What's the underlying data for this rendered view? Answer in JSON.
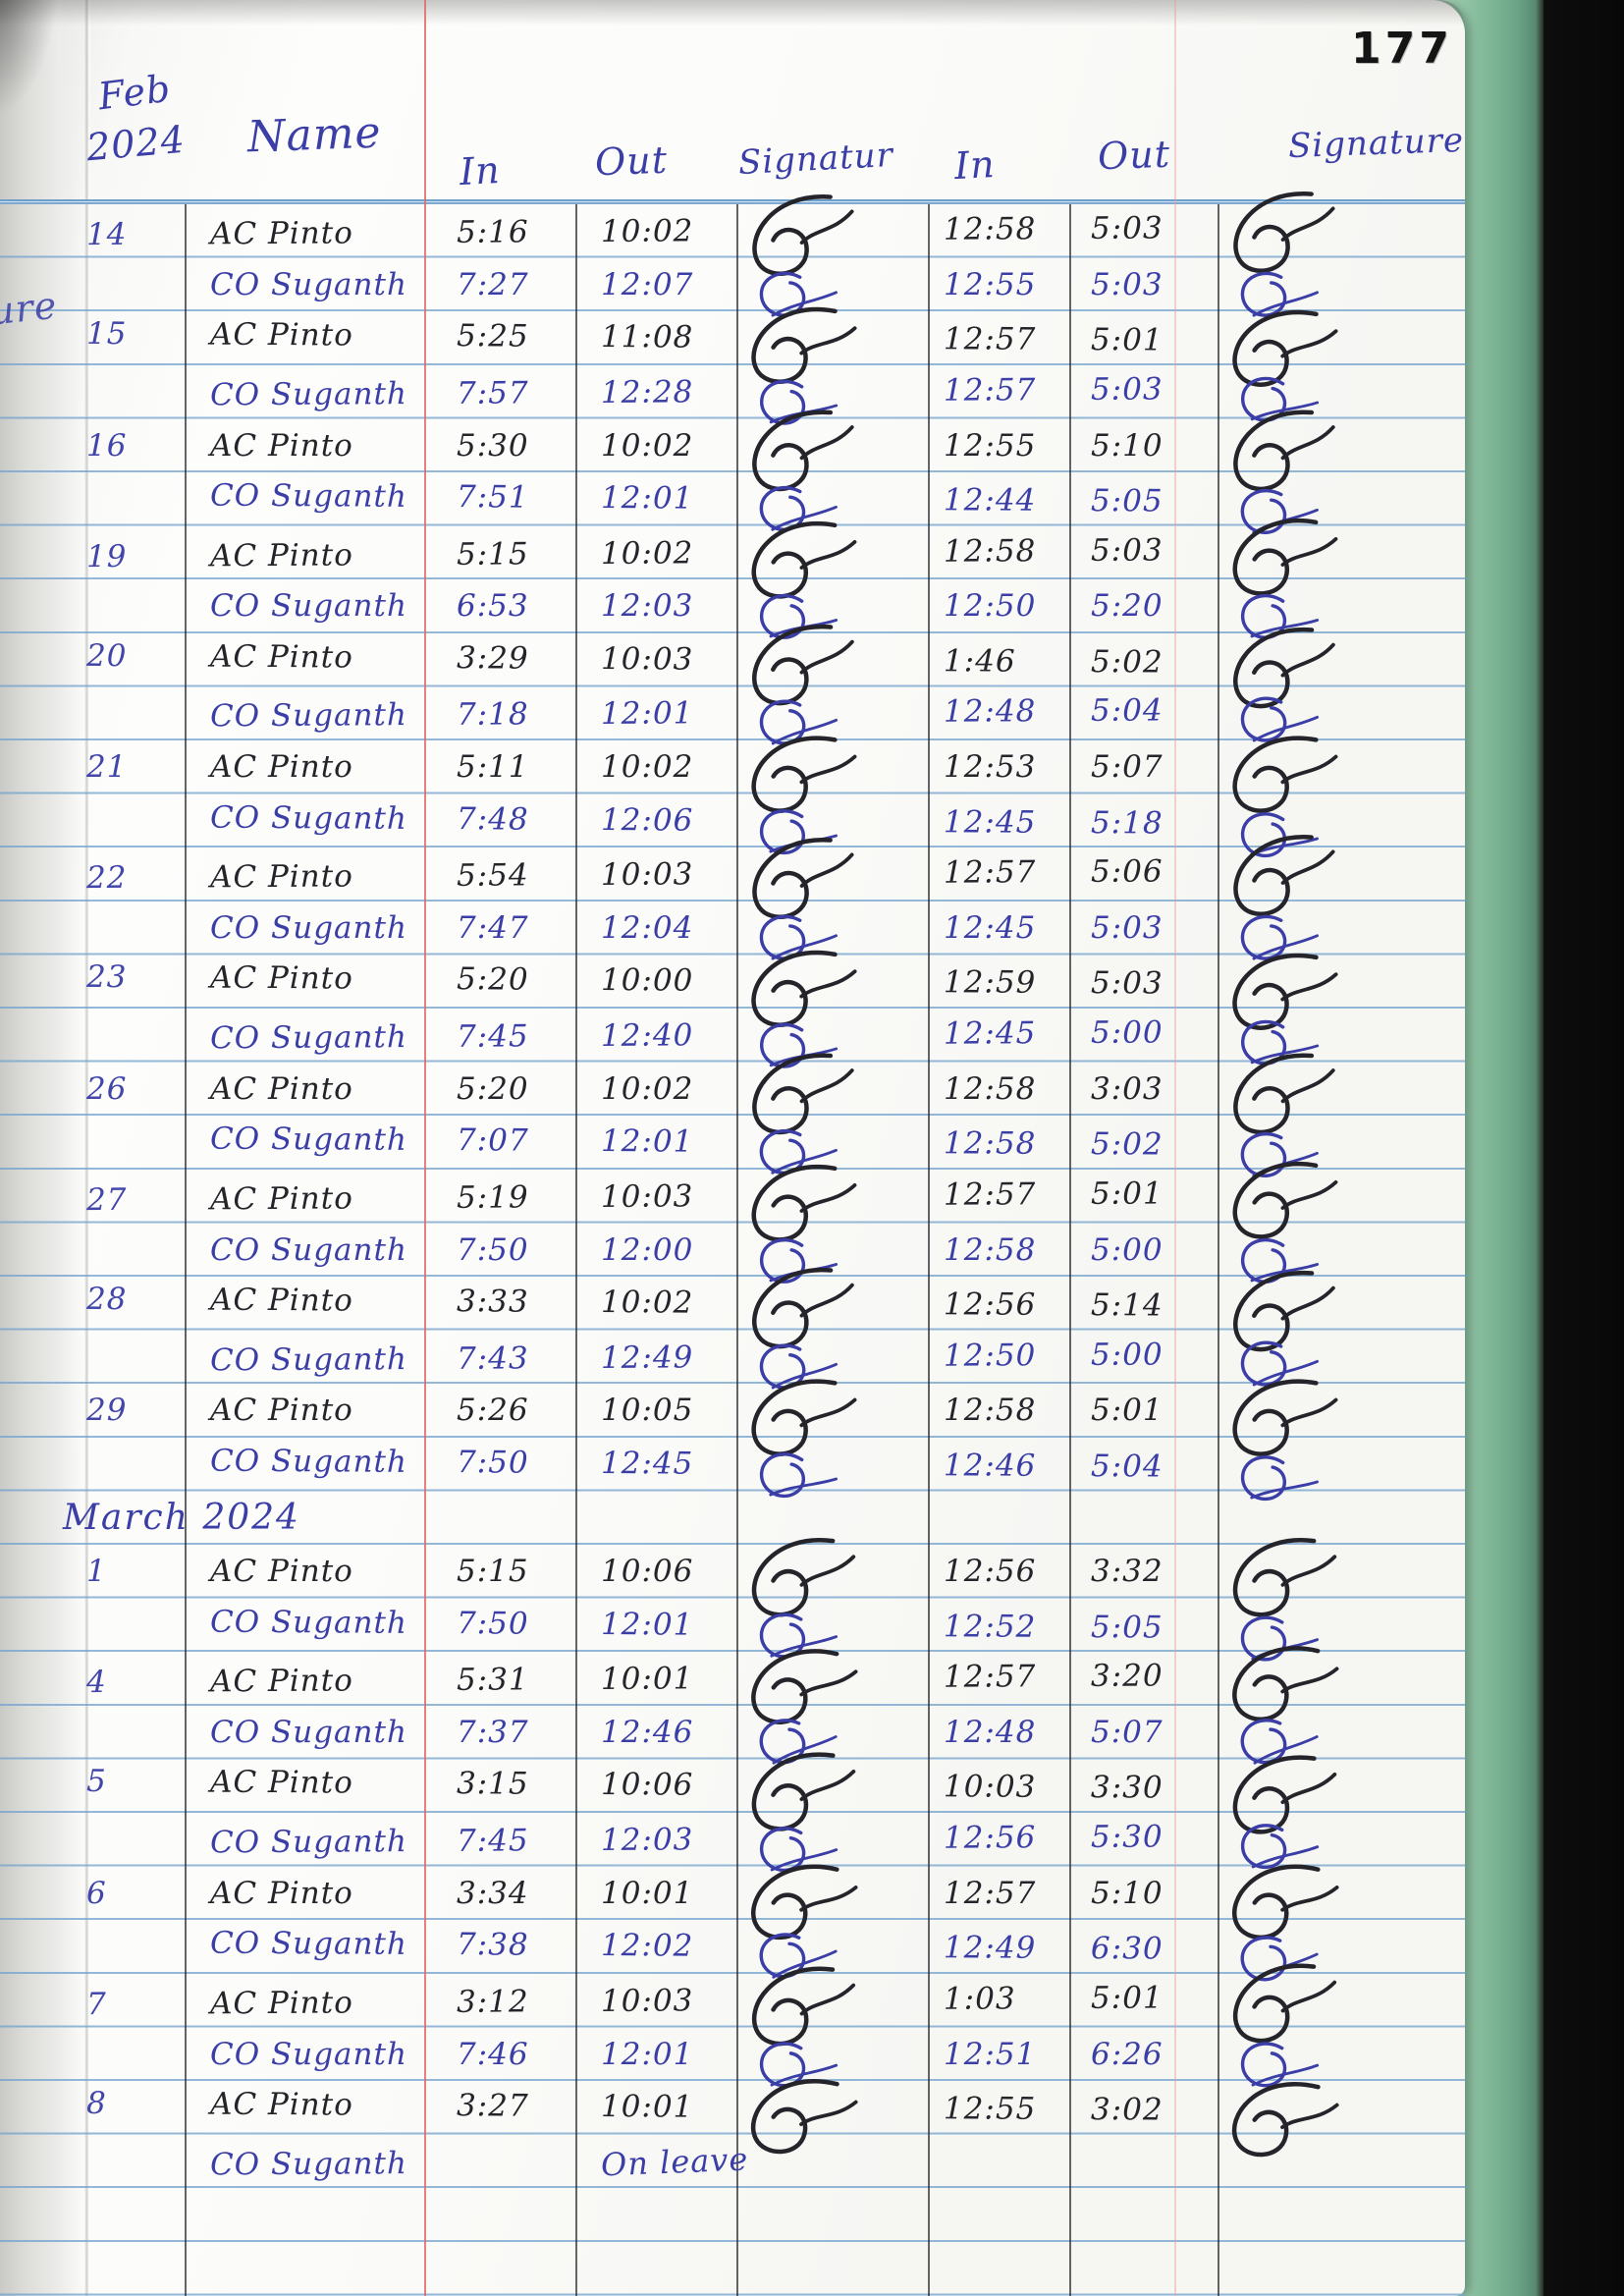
{
  "page_number": "177",
  "edge_fragment": "ure",
  "header": {
    "month_line1": "Feb",
    "month_line2": "2024",
    "columns": [
      "Name",
      "In",
      "Out",
      "Signatur",
      "In",
      "Out",
      "Signature"
    ]
  },
  "ink_colors": {
    "black": "#24242a",
    "blue": "#3a3ea6",
    "date_blue": "#4246aa"
  },
  "sections": [
    {
      "label": "",
      "rows": [
        {
          "date": "14",
          "name": "AC Pinto",
          "ink": "black",
          "in1": "5:16",
          "out1": "10:02",
          "in2": "12:58",
          "out2": "5:03"
        },
        {
          "date": "",
          "name": "CO Suganth",
          "ink": "blue",
          "in1": "7:27",
          "out1": "12:07",
          "in2": "12:55",
          "out2": "5:03"
        },
        {
          "date": "15",
          "name": "AC Pinto",
          "ink": "black",
          "in1": "5:25",
          "out1": "11:08",
          "in2": "12:57",
          "out2": "5:01"
        },
        {
          "date": "",
          "name": "CO Suganth",
          "ink": "blue",
          "in1": "7:57",
          "out1": "12:28",
          "in2": "12:57",
          "out2": "5:03"
        },
        {
          "date": "16",
          "name": "AC Pinto",
          "ink": "black",
          "in1": "5:30",
          "out1": "10:02",
          "in2": "12:55",
          "out2": "5:10"
        },
        {
          "date": "",
          "name": "CO Suganth",
          "ink": "blue",
          "in1": "7:51",
          "out1": "12:01",
          "in2": "12:44",
          "out2": "5:05"
        },
        {
          "date": "19",
          "name": "AC Pinto",
          "ink": "black",
          "in1": "5:15",
          "out1": "10:02",
          "in2": "12:58",
          "out2": "5:03"
        },
        {
          "date": "",
          "name": "CO Suganth",
          "ink": "blue",
          "in1": "6:53",
          "out1": "12:03",
          "in2": "12:50",
          "out2": "5:20"
        },
        {
          "date": "20",
          "name": "AC Pinto",
          "ink": "black",
          "in1": "3:29",
          "out1": "10:03",
          "in2": "1:46",
          "out2": "5:02"
        },
        {
          "date": "",
          "name": "CO Suganth",
          "ink": "blue",
          "in1": "7:18",
          "out1": "12:01",
          "in2": "12:48",
          "out2": "5:04"
        },
        {
          "date": "21",
          "name": "AC Pinto",
          "ink": "black",
          "in1": "5:11",
          "out1": "10:02",
          "in2": "12:53",
          "out2": "5:07"
        },
        {
          "date": "",
          "name": "CO Suganth",
          "ink": "blue",
          "in1": "7:48",
          "out1": "12:06",
          "in2": "12:45",
          "out2": "5:18"
        },
        {
          "date": "22",
          "name": "AC Pinto",
          "ink": "black",
          "in1": "5:54",
          "out1": "10:03",
          "in2": "12:57",
          "out2": "5:06"
        },
        {
          "date": "",
          "name": "CO Suganth",
          "ink": "blue",
          "in1": "7:47",
          "out1": "12:04",
          "in2": "12:45",
          "out2": "5:03"
        },
        {
          "date": "23",
          "name": "AC Pinto",
          "ink": "black",
          "in1": "5:20",
          "out1": "10:00",
          "in2": "12:59",
          "out2": "5:03"
        },
        {
          "date": "",
          "name": "CO Suganth",
          "ink": "blue",
          "in1": "7:45",
          "out1": "12:40",
          "in2": "12:45",
          "out2": "5:00"
        },
        {
          "date": "26",
          "name": "AC Pinto",
          "ink": "black",
          "in1": "5:20",
          "out1": "10:02",
          "in2": "12:58",
          "out2": "3:03"
        },
        {
          "date": "",
          "name": "CO Suganth",
          "ink": "blue",
          "in1": "7:07",
          "out1": "12:01",
          "in2": "12:58",
          "out2": "5:02"
        },
        {
          "date": "27",
          "name": "AC Pinto",
          "ink": "black",
          "in1": "5:19",
          "out1": "10:03",
          "in2": "12:57",
          "out2": "5:01"
        },
        {
          "date": "",
          "name": "CO Suganth",
          "ink": "blue",
          "in1": "7:50",
          "out1": "12:00",
          "in2": "12:58",
          "out2": "5:00"
        },
        {
          "date": "28",
          "name": "AC Pinto",
          "ink": "black",
          "in1": "3:33",
          "out1": "10:02",
          "in2": "12:56",
          "out2": "5:14"
        },
        {
          "date": "",
          "name": "CO Suganth",
          "ink": "blue",
          "in1": "7:43",
          "out1": "12:49",
          "in2": "12:50",
          "out2": "5:00"
        },
        {
          "date": "29",
          "name": "AC Pinto",
          "ink": "black",
          "in1": "5:26",
          "out1": "10:05",
          "in2": "12:58",
          "out2": "5:01"
        },
        {
          "date": "",
          "name": "CO Suganth",
          "ink": "blue",
          "in1": "7:50",
          "out1": "12:45",
          "in2": "12:46",
          "out2": "5:04"
        }
      ]
    },
    {
      "label": "March 2024",
      "rows": [
        {
          "date": "1",
          "name": "AC Pinto",
          "ink": "black",
          "in1": "5:15",
          "out1": "10:06",
          "in2": "12:56",
          "out2": "3:32"
        },
        {
          "date": "",
          "name": "CO Suganth",
          "ink": "blue",
          "in1": "7:50",
          "out1": "12:01",
          "in2": "12:52",
          "out2": "5:05"
        },
        {
          "date": "4",
          "name": "AC Pinto",
          "ink": "black",
          "in1": "5:31",
          "out1": "10:01",
          "in2": "12:57",
          "out2": "3:20"
        },
        {
          "date": "",
          "name": "CO Suganth",
          "ink": "blue",
          "in1": "7:37",
          "out1": "12:46",
          "in2": "12:48",
          "out2": "5:07"
        },
        {
          "date": "5",
          "name": "AC Pinto",
          "ink": "black",
          "in1": "3:15",
          "out1": "10:06",
          "in2": "10:03",
          "out2": "3:30"
        },
        {
          "date": "",
          "name": "CO Suganth",
          "ink": "blue",
          "in1": "7:45",
          "out1": "12:03",
          "in2": "12:56",
          "out2": "5:30"
        },
        {
          "date": "6",
          "name": "AC Pinto",
          "ink": "black",
          "in1": "3:34",
          "out1": "10:01",
          "in2": "12:57",
          "out2": "5:10"
        },
        {
          "date": "",
          "name": "CO Suganth",
          "ink": "blue",
          "in1": "7:38",
          "out1": "12:02",
          "in2": "12:49",
          "out2": "6:30"
        },
        {
          "date": "7",
          "name": "AC Pinto",
          "ink": "black",
          "in1": "3:12",
          "out1": "10:03",
          "in2": "1:03",
          "out2": "5:01"
        },
        {
          "date": "",
          "name": "CO Suganth",
          "ink": "blue",
          "in1": "7:46",
          "out1": "12:01",
          "in2": "12:51",
          "out2": "6:26"
        },
        {
          "date": "8",
          "name": "AC Pinto",
          "ink": "black",
          "in1": "3:27",
          "out1": "10:01",
          "in2": "12:55",
          "out2": "3:02"
        },
        {
          "date": "",
          "name": "CO Suganth",
          "ink": "blue",
          "note": "On leave"
        }
      ]
    }
  ]
}
